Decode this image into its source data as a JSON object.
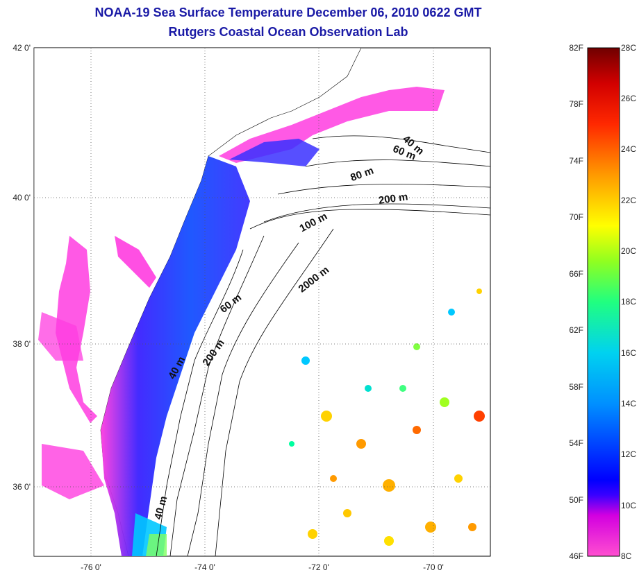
{
  "title": "NOAA-19 Sea Surface Temperature December 06, 2010 0622 GMT",
  "subtitle": "Rutgers Coastal Ocean Observation Lab",
  "map": {
    "lat_ticks": [
      "42 0'",
      "40 0'",
      "38 0'",
      "36 0'"
    ],
    "lon_ticks": [
      "-76 0'",
      "-74 0'",
      "-72 0'",
      "-70 0'"
    ],
    "contour_labels": [
      "40 m",
      "60 m",
      "80 m",
      "200 m",
      "100 m",
      "2000 m",
      "60 m",
      "40 m",
      "200 m",
      "40 m"
    ]
  },
  "colorbar": {
    "f_labels": [
      "82F",
      "78F",
      "74F",
      "70F",
      "66F",
      "62F",
      "58F",
      "54F",
      "50F",
      "46F"
    ],
    "c_labels": [
      "28C",
      "26C",
      "24C",
      "22C",
      "20C",
      "18C",
      "16C",
      "14C",
      "12C",
      "10C",
      "8C"
    ],
    "colors": [
      "#7a0000",
      "#e00000",
      "#ff6a00",
      "#ffd200",
      "#c8ff00",
      "#3cff6a",
      "#00e6e6",
      "#0096ff",
      "#0000ff",
      "#7d00d2",
      "#ff00ff",
      "#ff55cc"
    ]
  }
}
